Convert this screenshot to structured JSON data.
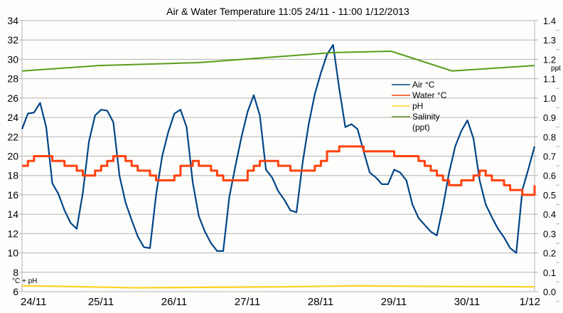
{
  "chart_data": {
    "type": "line",
    "title": "Air & Water Temperature 11:05 24/11 - 11:00 1/12/2013",
    "x_range": [
      "2013-11-24 11:05",
      "2013-12-01 11:00"
    ],
    "x_tick_labels": [
      "24/11",
      "25/11",
      "26/11",
      "27/11",
      "28/11",
      "29/11",
      "30/11",
      "1/12"
    ],
    "y_left": {
      "label": "°C + pH",
      "range": [
        6,
        34
      ],
      "ticks": [
        6,
        8,
        10,
        12,
        14,
        16,
        18,
        20,
        22,
        24,
        26,
        28,
        30,
        32,
        34
      ]
    },
    "y_right": {
      "label": "ppt",
      "range": [
        0,
        1.4
      ],
      "ticks": [
        "0.0",
        "0.1",
        "0.2",
        "0.3",
        "0.4",
        "0.5",
        "0.6",
        "0.7",
        "0.8",
        "0.9",
        "1.0",
        "1.1",
        "1.2",
        "1.3",
        "1.4"
      ]
    },
    "grid": true,
    "legend_position": "right",
    "series": [
      {
        "name": "Air °C",
        "axis": "left",
        "color": "#004586",
        "style": "line",
        "x": [
          "2013-11-24 11:05",
          "2013-11-24 13:00",
          "2013-11-24 15:00",
          "2013-11-24 17:00",
          "2013-11-24 19:00",
          "2013-11-24 21:00",
          "2013-11-24 23:00",
          "2013-11-25 01:00",
          "2013-11-25 03:00",
          "2013-11-25 05:00",
          "2013-11-25 07:00",
          "2013-11-25 09:00",
          "2013-11-25 11:00",
          "2013-11-25 13:00",
          "2013-11-25 15:00",
          "2013-11-25 17:00",
          "2013-11-25 19:00",
          "2013-11-25 21:00",
          "2013-11-25 23:00",
          "2013-11-26 01:00",
          "2013-11-26 03:00",
          "2013-11-26 05:00",
          "2013-11-26 07:00",
          "2013-11-26 09:00",
          "2013-11-26 11:00",
          "2013-11-26 13:00",
          "2013-11-26 15:00",
          "2013-11-26 17:00",
          "2013-11-26 19:00",
          "2013-11-26 21:00",
          "2013-11-26 23:00",
          "2013-11-27 01:00",
          "2013-11-27 03:00",
          "2013-11-27 05:00",
          "2013-11-27 07:00",
          "2013-11-27 09:00",
          "2013-11-27 11:00",
          "2013-11-27 13:00",
          "2013-11-27 15:00",
          "2013-11-27 17:00",
          "2013-11-27 19:00",
          "2013-11-27 21:00",
          "2013-11-27 23:00",
          "2013-11-28 01:00",
          "2013-11-28 03:00",
          "2013-11-28 05:00",
          "2013-11-28 07:00",
          "2013-11-28 09:00",
          "2013-11-28 11:00",
          "2013-11-28 13:00",
          "2013-11-28 15:00",
          "2013-11-28 17:00",
          "2013-11-28 19:00",
          "2013-11-28 21:00",
          "2013-11-28 23:00",
          "2013-11-29 01:00",
          "2013-11-29 03:00",
          "2013-11-29 05:00",
          "2013-11-29 07:00",
          "2013-11-29 09:00",
          "2013-11-29 11:00",
          "2013-11-29 13:00",
          "2013-11-29 15:00",
          "2013-11-29 17:00",
          "2013-11-29 19:00",
          "2013-11-29 21:00",
          "2013-11-29 23:00",
          "2013-11-30 01:00",
          "2013-11-30 03:00",
          "2013-11-30 05:00",
          "2013-11-30 07:00",
          "2013-11-30 09:00",
          "2013-11-30 11:00",
          "2013-11-30 13:00",
          "2013-11-30 15:00",
          "2013-11-30 17:00",
          "2013-11-30 19:00",
          "2013-11-30 21:00",
          "2013-11-30 23:00",
          "2013-12-01 01:00",
          "2013-12-01 03:00",
          "2013-12-01 05:00",
          "2013-12-01 07:00",
          "2013-12-01 09:00",
          "2013-12-01 11:00"
        ],
        "y": [
          22.8,
          24.4,
          24.5,
          25.5,
          23,
          17.2,
          16.1,
          14.4,
          13.1,
          12.5,
          16.2,
          21.5,
          24.2,
          24.8,
          24.7,
          23.5,
          18,
          15.2,
          13.4,
          11.7,
          10.6,
          10.5,
          16,
          20,
          22.5,
          24.4,
          24.8,
          23,
          17.3,
          13.8,
          12.2,
          11,
          10.2,
          10.2,
          15.8,
          19,
          22,
          24.6,
          26.3,
          24.2,
          18.6,
          17.8,
          16.4,
          15.5,
          14.4,
          14.2,
          19.3,
          23.3,
          26.4,
          28.6,
          30.5,
          31.5,
          27,
          23,
          23.3,
          22.8,
          20.5,
          18.3,
          17.8,
          17.1,
          17.1,
          18.6,
          18.3,
          17.5,
          15,
          13.6,
          12.9,
          12.2,
          11.8,
          14.8,
          18.3,
          21,
          22.6,
          23.7,
          21.8,
          17.5,
          15,
          13.7,
          12.5,
          11.6,
          10.5,
          10,
          16.5,
          18.7,
          21
        ]
      },
      {
        "name": "Water °C",
        "axis": "left",
        "color": "#ff420e",
        "style": "step",
        "x": [
          "2013-11-24 11:05",
          "2013-11-24 13:00",
          "2013-11-24 15:00",
          "2013-11-24 17:00",
          "2013-11-24 19:00",
          "2013-11-24 21:00",
          "2013-11-24 23:00",
          "2013-11-25 01:00",
          "2013-11-25 03:00",
          "2013-11-25 05:00",
          "2013-11-25 07:00",
          "2013-11-25 09:00",
          "2013-11-25 11:00",
          "2013-11-25 13:00",
          "2013-11-25 15:00",
          "2013-11-25 17:00",
          "2013-11-25 19:00",
          "2013-11-25 21:00",
          "2013-11-25 23:00",
          "2013-11-26 01:00",
          "2013-11-26 03:00",
          "2013-11-26 05:00",
          "2013-11-26 07:00",
          "2013-11-26 09:00",
          "2013-11-26 11:00",
          "2013-11-26 13:00",
          "2013-11-26 15:00",
          "2013-11-26 17:00",
          "2013-11-26 19:00",
          "2013-11-26 21:00",
          "2013-11-26 23:00",
          "2013-11-27 01:00",
          "2013-11-27 03:00",
          "2013-11-27 05:00",
          "2013-11-27 07:00",
          "2013-11-27 09:00",
          "2013-11-27 11:00",
          "2013-11-27 13:00",
          "2013-11-27 15:00",
          "2013-11-27 17:00",
          "2013-11-27 19:00",
          "2013-11-27 21:00",
          "2013-11-27 23:00",
          "2013-11-28 01:00",
          "2013-11-28 03:00",
          "2013-11-28 05:00",
          "2013-11-28 07:00",
          "2013-11-28 09:00",
          "2013-11-28 11:00",
          "2013-11-28 13:00",
          "2013-11-28 15:00",
          "2013-11-28 17:00",
          "2013-11-28 19:00",
          "2013-11-28 21:00",
          "2013-11-28 23:00",
          "2013-11-29 01:00",
          "2013-11-29 03:00",
          "2013-11-29 05:00",
          "2013-11-29 07:00",
          "2013-11-29 09:00",
          "2013-11-29 11:00",
          "2013-11-29 13:00",
          "2013-11-29 15:00",
          "2013-11-29 17:00",
          "2013-11-29 19:00",
          "2013-11-29 21:00",
          "2013-11-29 23:00",
          "2013-11-30 01:00",
          "2013-11-30 03:00",
          "2013-11-30 05:00",
          "2013-11-30 07:00",
          "2013-11-30 09:00",
          "2013-11-30 11:00",
          "2013-11-30 13:00",
          "2013-11-30 15:00",
          "2013-11-30 17:00",
          "2013-11-30 19:00",
          "2013-11-30 21:00",
          "2013-11-30 23:00",
          "2013-12-01 01:00",
          "2013-12-01 03:00",
          "2013-12-01 05:00",
          "2013-12-01 07:00",
          "2013-12-01 09:00",
          "2013-12-01 11:00"
        ],
        "y": [
          19,
          19.5,
          20,
          20,
          20,
          19.5,
          19.5,
          19,
          19,
          18.5,
          18,
          18,
          18.5,
          19,
          19.5,
          20,
          20,
          19.5,
          19,
          18.5,
          18.5,
          18,
          17.5,
          17.5,
          17.5,
          18,
          19,
          19,
          19.5,
          19,
          19,
          18.5,
          18,
          17.5,
          17.5,
          17.5,
          17.5,
          18.5,
          19,
          19.5,
          19.5,
          19.5,
          19,
          19,
          18.5,
          18.5,
          18.5,
          18.5,
          19,
          19.5,
          20.5,
          20.5,
          21,
          21,
          21,
          21,
          20.5,
          20.5,
          20.5,
          20.5,
          20.5,
          20,
          20,
          20,
          20,
          19.5,
          19,
          18.5,
          18,
          17.5,
          17,
          17,
          17.5,
          17.5,
          18,
          18.5,
          18,
          17.5,
          17.5,
          17,
          16.5,
          16.5,
          16,
          16,
          17
        ]
      },
      {
        "name": "pH",
        "axis": "left",
        "color": "#ffd320",
        "style": "line",
        "x": [
          "2013-11-24 11:05",
          "2013-11-25 00:00",
          "2013-11-26 00:00",
          "2013-11-27 00:00",
          "2013-11-28 00:00",
          "2013-11-29 00:00",
          "2013-11-30 00:00",
          "2013-12-01 11:00"
        ],
        "y": [
          6.6,
          6.55,
          6.4,
          6.45,
          6.5,
          6.6,
          6.55,
          6.5
        ]
      },
      {
        "name": "Salinity (ppt)",
        "axis": "right",
        "color": "#579d1c",
        "style": "line",
        "x": [
          "2013-11-24 11:05",
          "2013-11-25 12:30",
          "2013-11-26 21:00",
          "2013-11-28 17:00",
          "2013-11-29 12:00",
          "2013-11-30 08:00",
          "2013-12-01 11:00"
        ],
        "y": [
          1.14,
          1.168,
          1.183,
          1.235,
          1.242,
          1.14,
          1.168
        ]
      }
    ]
  },
  "legend": {
    "items": [
      {
        "label": "Air °C",
        "color": "#004586"
      },
      {
        "label": "Water °C",
        "color": "#ff420e"
      },
      {
        "label": "pH",
        "color": "#ffd320"
      },
      {
        "label": "Salinity",
        "sub": "(ppt)",
        "color": "#579d1c"
      }
    ]
  }
}
